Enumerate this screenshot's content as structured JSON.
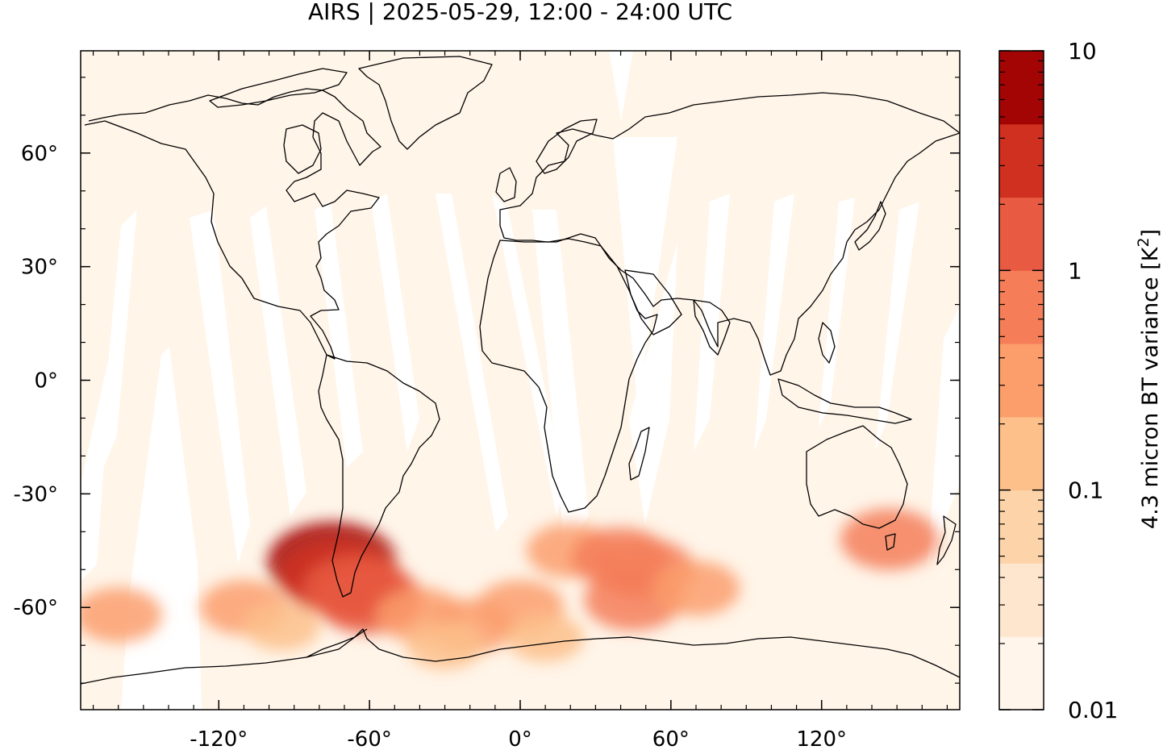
{
  "title": "AIRS | 2025-05-29, 12:00 - 24:00 UTC",
  "map": {
    "projection": "equirectangular",
    "lon_range": [
      -175,
      175
    ],
    "lat_range": [
      -87,
      87
    ],
    "background_color": "#fff5e9",
    "swath_gap_color": "#ffffff",
    "coastline_color": "#000000",
    "x_ticks": [
      {
        "value": -120,
        "label": "-120°"
      },
      {
        "value": -60,
        "label": "-60°"
      },
      {
        "value": 0,
        "label": "0°"
      },
      {
        "value": 60,
        "label": "60°"
      },
      {
        "value": 120,
        "label": "120°"
      }
    ],
    "y_ticks": [
      {
        "value": 60,
        "label": "60°"
      },
      {
        "value": 30,
        "label": "30°"
      },
      {
        "value": 0,
        "label": "0°"
      },
      {
        "value": -30,
        "label": "-30°"
      },
      {
        "value": -60,
        "label": "-60°"
      }
    ]
  },
  "colorbar": {
    "label_main": "4.3 micron BT variance [K",
    "label_sup": "2",
    "label_end": "]",
    "scale": "log",
    "range": [
      0.01,
      10
    ],
    "tick_labels": [
      {
        "value": 10,
        "label": "10"
      },
      {
        "value": 1,
        "label": "1"
      },
      {
        "value": 0.1,
        "label": "0.1"
      },
      {
        "value": 0.01,
        "label": "0.01"
      }
    ],
    "colors": [
      "#fff5eb",
      "#fee6ce",
      "#fdd4a9",
      "#fdc08b",
      "#fb9e6c",
      "#f57e59",
      "#e85a41",
      "#d03020",
      "#a30505"
    ]
  },
  "hotspots": [
    {
      "lon": -75,
      "lat": -48,
      "level": 8
    },
    {
      "lon": -72,
      "lat": -52,
      "level": 7
    },
    {
      "lon": -65,
      "lat": -55,
      "level": 6
    },
    {
      "lon": -60,
      "lat": -58,
      "level": 6
    },
    {
      "lon": -40,
      "lat": -62,
      "level": 4
    },
    {
      "lon": -20,
      "lat": -65,
      "level": 4
    },
    {
      "lon": 0,
      "lat": -60,
      "level": 4
    },
    {
      "lon": 20,
      "lat": -45,
      "level": 4
    },
    {
      "lon": 40,
      "lat": -47,
      "level": 5
    },
    {
      "lon": 50,
      "lat": -50,
      "level": 5
    },
    {
      "lon": 45,
      "lat": -58,
      "level": 5
    },
    {
      "lon": 70,
      "lat": -55,
      "level": 4
    },
    {
      "lon": 147,
      "lat": -42,
      "level": 5
    },
    {
      "lon": -160,
      "lat": -62,
      "level": 4
    },
    {
      "lon": -110,
      "lat": -60,
      "level": 4
    },
    {
      "lon": -95,
      "lat": -65,
      "level": 3
    },
    {
      "lon": -30,
      "lat": -70,
      "level": 3
    },
    {
      "lon": 10,
      "lat": -68,
      "level": 3
    }
  ]
}
